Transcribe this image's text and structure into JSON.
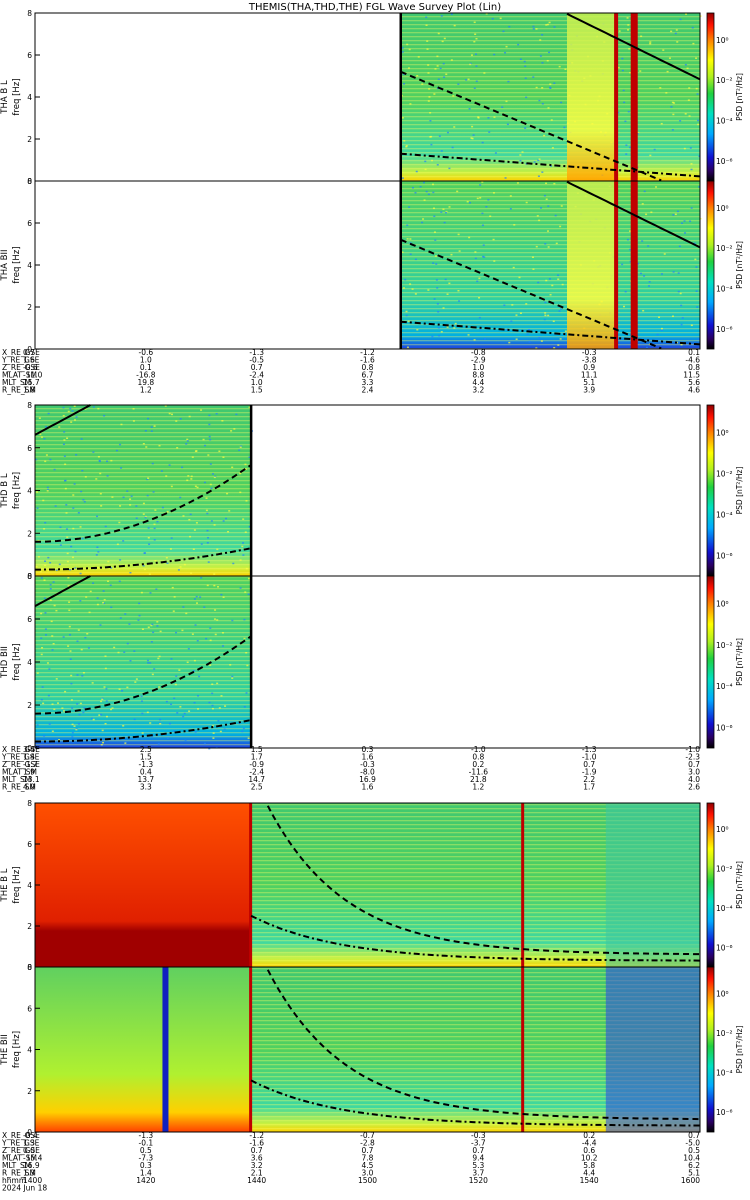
{
  "title": "THEMIS(THA,THD,THE) FGL Wave Survey Plot (Lin)",
  "chart_data": {
    "type": "heatmap",
    "title": "THEMIS(THA,THD,THE) FGL Wave Survey Plot (Lin)",
    "x_time_labels": [
      "1400",
      "1420",
      "1440",
      "1500",
      "1520",
      "1540",
      "1600"
    ],
    "date_label": "2024 Jun 18",
    "freq_ylim": [
      0,
      8
    ],
    "freq_ticks": [
      "0",
      "2",
      "4",
      "6",
      "8"
    ],
    "colorbar_ticks": [
      "10⁰",
      "10⁻²",
      "10⁻⁴",
      "10⁻⁶"
    ],
    "colorbar_label": "PSD [nT²/Hz]",
    "panels": [
      {
        "probe": "THA",
        "name": "B L",
        "ylabel": "freq [Hz]",
        "data_start_hhmm": "1506"
      },
      {
        "probe": "THA",
        "name": "BII",
        "ylabel": "freq [Hz]",
        "data_start_hhmm": "1506"
      },
      {
        "probe": "THD",
        "name": "B L",
        "ylabel": "freq [Hz]",
        "data_end_hhmm": "1439"
      },
      {
        "probe": "THD",
        "name": "BII",
        "ylabel": "freq [Hz]",
        "data_end_hhmm": "1439"
      },
      {
        "probe": "THE",
        "name": "B L",
        "ylabel": "freq [Hz]"
      },
      {
        "probe": "THE",
        "name": "BII",
        "ylabel": "freq [Hz]"
      }
    ],
    "ephemeris": [
      {
        "probe": "THA",
        "labels": [
          "X_RE_GSE",
          "Y_RE_GSE",
          "Z_RE_GSE",
          "MLAT_SM",
          "MLT_SM",
          "R_RE_SM"
        ],
        "rows": [
          [
            "0.7",
            "-0.6",
            "-1.3",
            "-1.2",
            "-0.8",
            "-0.3",
            "0.1"
          ],
          [
            "1.6",
            "1.0",
            "-0.5",
            "-1.6",
            "-2.9",
            "-3.8",
            "-4.6"
          ],
          [
            "-0.6",
            "0.1",
            "0.7",
            "0.8",
            "1.0",
            "0.9",
            "0.8"
          ],
          [
            "-11.0",
            "-16.8",
            "-2.4",
            "6.7",
            "8.8",
            "11.1",
            "11.5"
          ],
          [
            "15.7",
            "19.8",
            "1.0",
            "3.3",
            "4.4",
            "5.1",
            "5.6"
          ],
          [
            "1.8",
            "1.2",
            "1.5",
            "2.4",
            "3.2",
            "3.9",
            "4.6"
          ]
        ]
      },
      {
        "probe": "THD",
        "labels": [
          "X_RE_GSE",
          "Y_RE_GSE",
          "Z_RE_GSE",
          "MLAT_SM",
          "MLT_SM",
          "R_RE_SM"
        ],
        "rows": [
          [
            "3.4",
            "2.5",
            "1.5",
            "0.3",
            "-1.0",
            "-1.3",
            "-1.0"
          ],
          [
            "1.4",
            "1.5",
            "1.7",
            "1.6",
            "0.8",
            "-1.0",
            "-2.3"
          ],
          [
            "-1.7",
            "-1.3",
            "-0.9",
            "-0.3",
            "0.2",
            "0.7",
            "0.7"
          ],
          [
            "1.9",
            "0.4",
            "-2.4",
            "-8.0",
            "-11.6",
            "-1.9",
            "3.0"
          ],
          [
            "13.1",
            "13.7",
            "14.7",
            "16.9",
            "21.8",
            "2.2",
            "4.0"
          ],
          [
            "4.0",
            "3.3",
            "2.5",
            "1.6",
            "1.2",
            "1.7",
            "2.6"
          ]
        ]
      },
      {
        "probe": "THE",
        "labels": [
          "X_RE_GSE",
          "Y_RE_GSE",
          "Z_RE_GSE",
          "MLAT_SM",
          "MLT_SM",
          "R_RE_SM",
          "hhmm",
          "2024 Jun 18"
        ],
        "rows": [
          [
            "-0.4",
            "-1.3",
            "-1.2",
            "-0.7",
            "-0.3",
            "0.2",
            "0.7"
          ],
          [
            "1.3",
            "-0.1",
            "-1.6",
            "-2.8",
            "-3.7",
            "-4.4",
            "-5.0"
          ],
          [
            "0.0",
            "0.5",
            "0.7",
            "0.7",
            "0.7",
            "0.6",
            "0.5"
          ],
          [
            "-15.4",
            "-7.3",
            "3.6",
            "7.8",
            "9.4",
            "10.2",
            "10.4"
          ],
          [
            "16.9",
            "0.3",
            "3.2",
            "4.5",
            "5.3",
            "5.8",
            "6.2"
          ],
          [
            "1.3",
            "1.4",
            "2.1",
            "3.0",
            "3.7",
            "4.4",
            "5.1"
          ]
        ]
      }
    ]
  }
}
